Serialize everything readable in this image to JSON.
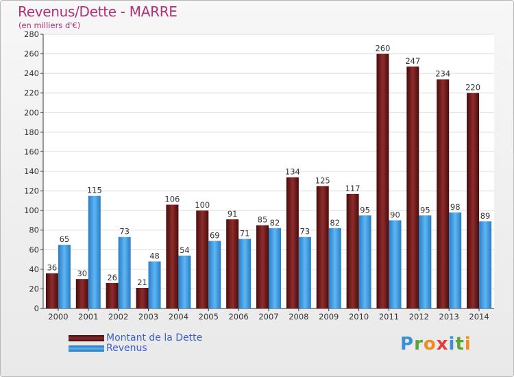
{
  "title": "Revenus/Dette - MARRE",
  "subtitle": "(en milliers d'€)",
  "logo": {
    "letters": [
      "P",
      "r",
      "o",
      "x",
      "i",
      "t",
      "i"
    ],
    "colors": [
      "#3a8fd6",
      "#5aa53a",
      "#f08c1e",
      "#e23b3b",
      "#3a8fd6",
      "#5aa53a",
      "#f08c1e"
    ]
  },
  "chart_data": {
    "type": "bar",
    "categories": [
      "2000",
      "2001",
      "2002",
      "2003",
      "2004",
      "2005",
      "2006",
      "2007",
      "2008",
      "2009",
      "2010",
      "2011",
      "2012",
      "2013",
      "2014"
    ],
    "series": [
      {
        "name": "Montant de la Dette",
        "values": [
          36,
          30,
          26,
          21,
          106,
          100,
          91,
          85,
          134,
          125,
          117,
          260,
          247,
          234,
          220
        ],
        "color": "#7a1e1e"
      },
      {
        "name": "Revenus",
        "values": [
          65,
          115,
          73,
          48,
          54,
          69,
          71,
          82,
          73,
          82,
          95,
          90,
          95,
          98,
          89
        ],
        "color": "#3a9ae6"
      }
    ],
    "ylim": [
      0,
      280
    ],
    "yticks": [
      0,
      20,
      40,
      60,
      80,
      100,
      120,
      140,
      160,
      180,
      200,
      220,
      240,
      260,
      280
    ],
    "grid": true,
    "legend": "bottom-left"
  }
}
